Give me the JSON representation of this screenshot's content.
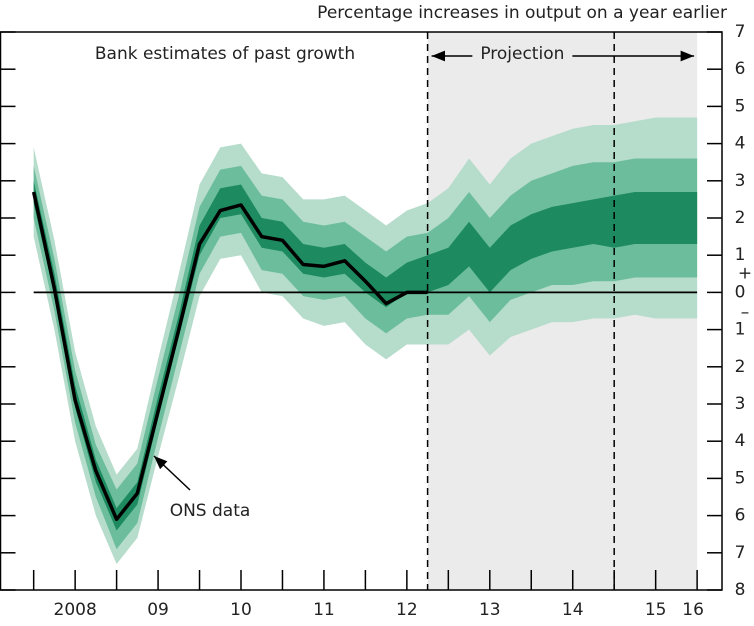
{
  "chart_data": {
    "type": "fan",
    "title": "Percentage increases in output on a year earlier",
    "annotations": {
      "past": "Bank estimates of past growth",
      "projection": "Projection",
      "ons": "ONS data"
    },
    "sign_labels": [
      "+",
      "–"
    ],
    "xlim": [
      2007.6,
      2016.3
    ],
    "ylim": [
      -8,
      7
    ],
    "yticks": [
      {
        "value": -8,
        "label": "8"
      },
      {
        "value": -7,
        "label": "7"
      },
      {
        "value": -6,
        "label": "6"
      },
      {
        "value": -5,
        "label": "5"
      },
      {
        "value": -4,
        "label": "4"
      },
      {
        "value": -3,
        "label": "3"
      },
      {
        "value": -2,
        "label": "2"
      },
      {
        "value": -1,
        "label": "1"
      },
      0,
      1,
      2,
      3,
      4,
      5,
      6,
      7
    ],
    "xticks": [
      {
        "value": 2008.5,
        "label": "2008"
      },
      {
        "value": 2009.5,
        "label": "09"
      },
      {
        "value": 2010.5,
        "label": "10"
      },
      {
        "value": 2011.5,
        "label": "11"
      },
      {
        "value": 2012.5,
        "label": "12"
      },
      {
        "value": 2013.5,
        "label": "13"
      },
      {
        "value": 2014.5,
        "label": "14"
      },
      {
        "value": 2015.5,
        "label": "15"
      },
      {
        "value": 2016,
        "label": "16"
      }
    ],
    "x_minor_ticks": [
      2008,
      2008.5,
      2009,
      2009.5,
      2010,
      2010.5,
      2011,
      2011.5,
      2012,
      2012.5,
      2013,
      2013.5,
      2014,
      2014.5,
      2015,
      2015.5,
      2016
    ],
    "projection_start": 2012.75,
    "projection_end": 2016,
    "projection_color": "#ebebeb",
    "dashed_lines": [
      2012.75,
      2015
    ],
    "hline": 0,
    "fan_x": [
      2008,
      2008.25,
      2008.5,
      2008.75,
      2009,
      2009.25,
      2009.5,
      2009.75,
      2010,
      2010.25,
      2010.5,
      2010.75,
      2011,
      2011.25,
      2011.5,
      2011.75,
      2012,
      2012.25,
      2012.5,
      2012.75,
      2013,
      2013.25,
      2013.5,
      2013.75,
      2014,
      2014.25,
      2014.5,
      2014.75,
      2015,
      2015.25,
      2015.5,
      2015.75,
      2016
    ],
    "bands": [
      {
        "color": "#b6dccb",
        "upper": [
          3.9,
          1.4,
          -1.6,
          -3.6,
          -4.9,
          -4.2,
          -1.8,
          0.5,
          2.9,
          3.9,
          4.0,
          3.2,
          3.1,
          2.5,
          2.5,
          2.6,
          2.2,
          1.8,
          2.2,
          2.4,
          2.8,
          3.6,
          2.9,
          3.6,
          4.0,
          4.2,
          4.4,
          4.5,
          4.5,
          4.6,
          4.7,
          4.7,
          4.7
        ],
        "lower": [
          1.5,
          -1.0,
          -4.0,
          -6.0,
          -7.3,
          -6.6,
          -4.4,
          -2.3,
          -0.1,
          0.9,
          1.0,
          0.0,
          -0.1,
          -0.7,
          -0.9,
          -0.8,
          -1.4,
          -1.8,
          -1.4,
          -1.4,
          -1.4,
          -1.0,
          -1.7,
          -1.2,
          -1.0,
          -0.8,
          -0.8,
          -0.7,
          -0.7,
          -0.6,
          -0.7,
          -0.7,
          -0.7
        ]
      },
      {
        "color": "#6cbd9b",
        "upper": [
          3.4,
          0.9,
          -2.1,
          -4.1,
          -5.3,
          -4.6,
          -2.3,
          -0.1,
          2.3,
          3.3,
          3.4,
          2.6,
          2.5,
          1.9,
          1.8,
          1.9,
          1.5,
          1.1,
          1.5,
          1.6,
          2.0,
          2.7,
          2.0,
          2.6,
          3.0,
          3.2,
          3.4,
          3.5,
          3.5,
          3.6,
          3.6,
          3.6,
          3.6
        ],
        "lower": [
          2.0,
          -0.5,
          -3.5,
          -5.5,
          -6.9,
          -6.2,
          -3.9,
          -1.7,
          0.5,
          1.5,
          1.6,
          0.6,
          0.5,
          -0.1,
          -0.2,
          -0.1,
          -0.7,
          -1.1,
          -0.7,
          -0.6,
          -0.6,
          -0.1,
          -0.8,
          -0.2,
          0.0,
          0.2,
          0.2,
          0.3,
          0.3,
          0.4,
          0.4,
          0.4,
          0.4
        ]
      },
      {
        "color": "#1d8a5f",
        "upper": [
          3.0,
          0.5,
          -2.5,
          -4.5,
          -5.8,
          -5.1,
          -2.8,
          -0.6,
          1.8,
          2.8,
          2.9,
          2.0,
          1.9,
          1.3,
          1.2,
          1.3,
          0.8,
          0.4,
          0.8,
          1.0,
          1.2,
          1.9,
          1.2,
          1.8,
          2.1,
          2.3,
          2.4,
          2.5,
          2.6,
          2.7,
          2.7,
          2.7,
          2.7
        ],
        "lower": [
          2.4,
          -0.1,
          -3.1,
          -5.1,
          -6.4,
          -5.7,
          -3.4,
          -1.2,
          1.0,
          2.0,
          2.1,
          1.2,
          1.1,
          0.5,
          0.4,
          0.5,
          0.0,
          -0.4,
          0.0,
          0.0,
          0.2,
          0.7,
          0.0,
          0.6,
          0.9,
          1.1,
          1.2,
          1.3,
          1.2,
          1.3,
          1.3,
          1.3,
          1.3
        ]
      }
    ],
    "ons": {
      "color": "#000000",
      "x": [
        2008,
        2008.25,
        2008.5,
        2008.75,
        2009,
        2009.25,
        2009.5,
        2009.75,
        2010,
        2010.25,
        2010.5,
        2010.75,
        2011,
        2011.25,
        2011.5,
        2011.75,
        2012,
        2012.25,
        2012.5,
        2012.75
      ],
      "values": [
        2.7,
        0.1,
        -2.9,
        -4.8,
        -6.1,
        -5.4,
        -3.2,
        -1.0,
        1.3,
        2.2,
        2.35,
        1.5,
        1.4,
        0.75,
        0.7,
        0.85,
        0.3,
        -0.3,
        0.0,
        0.0
      ]
    }
  }
}
